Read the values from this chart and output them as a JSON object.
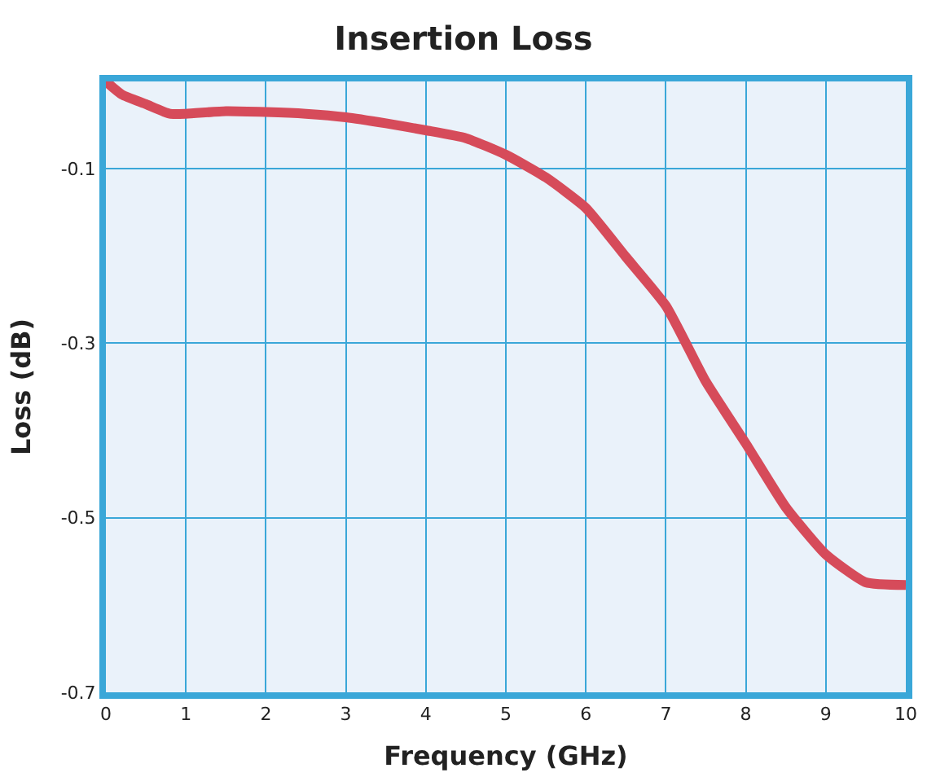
{
  "chart_data": {
    "type": "line",
    "title": "Insertion Loss",
    "xlabel": "Frequency (GHz)",
    "ylabel": "Loss (dB)",
    "xlim": [
      0,
      10
    ],
    "xticks": [
      0,
      1,
      2,
      3,
      4,
      5,
      6,
      7,
      8,
      9,
      10
    ],
    "ylim": [
      -0.7,
      0
    ],
    "yticks": [
      -0.1,
      -0.3,
      -0.5,
      -0.7
    ],
    "grid": true,
    "marker": "none",
    "line_style": "solid",
    "series": [
      {
        "color": "#d64b5a",
        "x": [
          0,
          0.2,
          0.5,
          0.8,
          1,
          1.5,
          2,
          2.5,
          3,
          3.5,
          4,
          4.5,
          5,
          5.5,
          6,
          6.5,
          7,
          7.5,
          8,
          8.5,
          9,
          9.5,
          10
        ],
        "values": [
          0,
          -0.015,
          -0.026,
          -0.037,
          -0.037,
          -0.034,
          -0.035,
          -0.037,
          -0.041,
          -0.048,
          -0.056,
          -0.065,
          -0.084,
          -0.11,
          -0.145,
          -0.201,
          -0.257,
          -0.344,
          -0.415,
          -0.488,
          -0.542,
          -0.574,
          -0.577
        ]
      }
    ]
  }
}
